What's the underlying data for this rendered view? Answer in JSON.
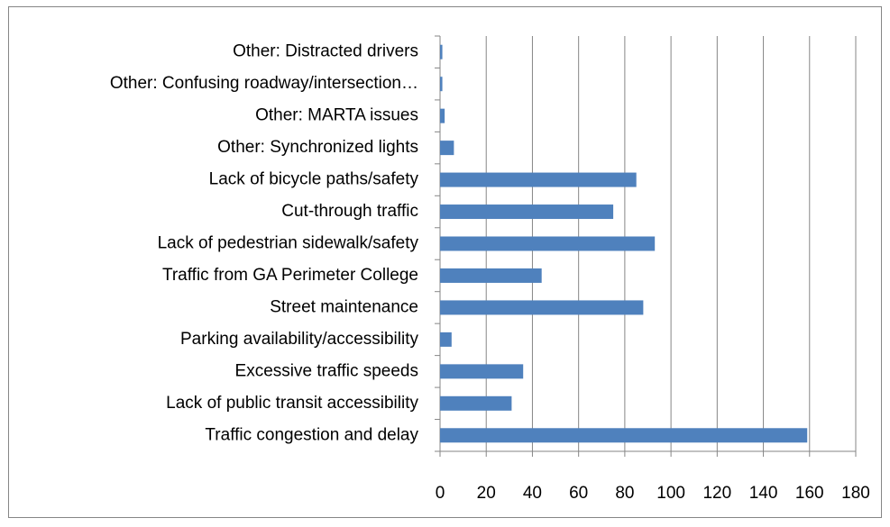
{
  "chart_data": {
    "type": "barh",
    "categories": [
      "Other: Distracted drivers",
      "Other: Confusing roadway/intersection…",
      "Other: MARTA issues",
      "Other: Synchronized lights",
      "Lack of bicycle paths/safety",
      "Cut-through traffic",
      "Lack of pedestrian sidewalk/safety",
      "Traffic from GA Perimeter College",
      "Street maintenance",
      "Parking availability/accessibility",
      "Excessive traffic speeds",
      "Lack of public transit accessibility",
      "Traffic congestion and delay"
    ],
    "values": [
      1,
      1,
      2,
      6,
      85,
      75,
      93,
      44,
      88,
      5,
      36,
      31,
      159
    ],
    "color": "#4f81bd",
    "xlim": [
      0,
      180
    ],
    "xticks": [
      0,
      20,
      40,
      60,
      80,
      100,
      120,
      140,
      160,
      180
    ],
    "grid": true
  }
}
